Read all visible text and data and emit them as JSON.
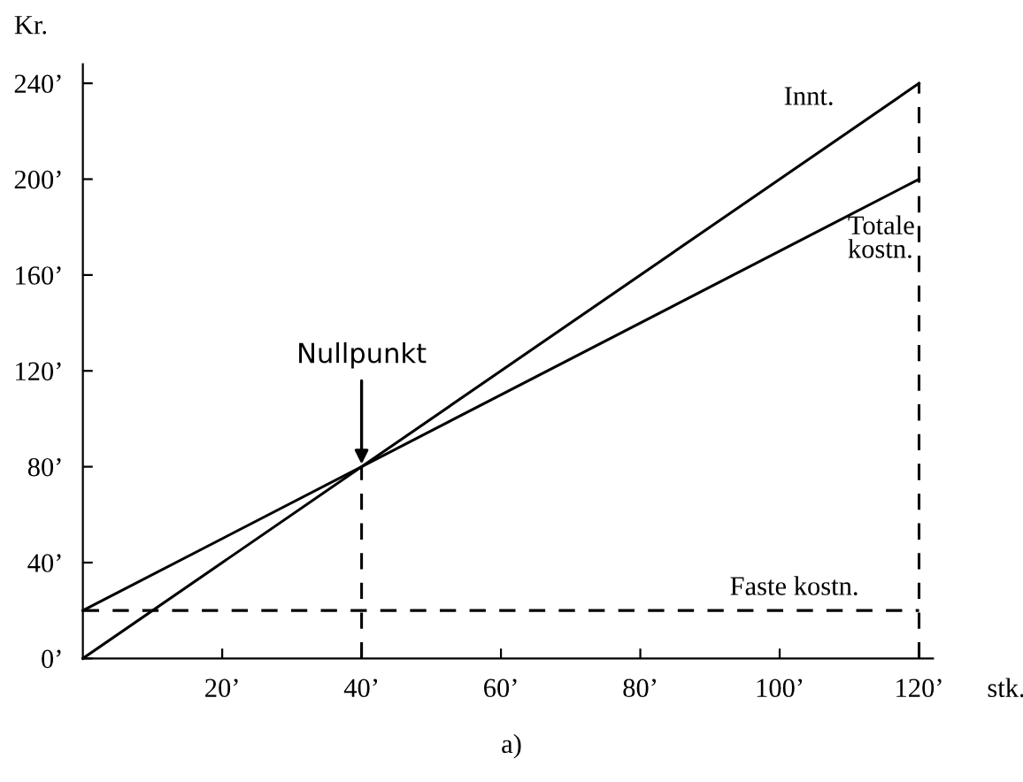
{
  "chart_data": {
    "type": "line",
    "ylabel": "Kr.",
    "xlabel": "stk.",
    "xlim": [
      0,
      122
    ],
    "x": [
      0,
      120
    ],
    "ylim": [
      0,
      248
    ],
    "xticks": [
      {
        "value": 20,
        "label": "20’"
      },
      {
        "value": 40,
        "label": "40’"
      },
      {
        "value": 60,
        "label": "60’"
      },
      {
        "value": 80,
        "label": "80’"
      },
      {
        "value": 100,
        "label": "100’"
      },
      {
        "value": 120,
        "label": "120’"
      }
    ],
    "yticks": [
      {
        "value": 0,
        "label": "0’"
      },
      {
        "value": 40,
        "label": "40’"
      },
      {
        "value": 80,
        "label": "80’"
      },
      {
        "value": 120,
        "label": "120’"
      },
      {
        "value": 160,
        "label": "160’"
      },
      {
        "value": 200,
        "label": "200’"
      },
      {
        "value": 240,
        "label": "240’"
      }
    ],
    "series": [
      {
        "name": "Innt.",
        "color": "#000000",
        "values": [
          0,
          240
        ],
        "line_style": "solid"
      },
      {
        "name": "Totale\nkostn.",
        "color": "#000000",
        "values": [
          20,
          200
        ],
        "line_style": "solid"
      },
      {
        "name": "Faste kostn.",
        "color": "#000000",
        "values": [
          20,
          20
        ],
        "line_style": "dashed"
      }
    ],
    "ref_lines": [
      {
        "axis": "x",
        "value": 40,
        "color": "#000000",
        "line_style": "dashed"
      },
      {
        "axis": "x",
        "value": 120,
        "color": "#000000",
        "line_style": "dashed"
      }
    ],
    "annotations": [
      {
        "text": "Nullpunkt",
        "x": 40,
        "y": 80
      },
      "a)"
    ],
    "grid": false,
    "marker": "none"
  }
}
